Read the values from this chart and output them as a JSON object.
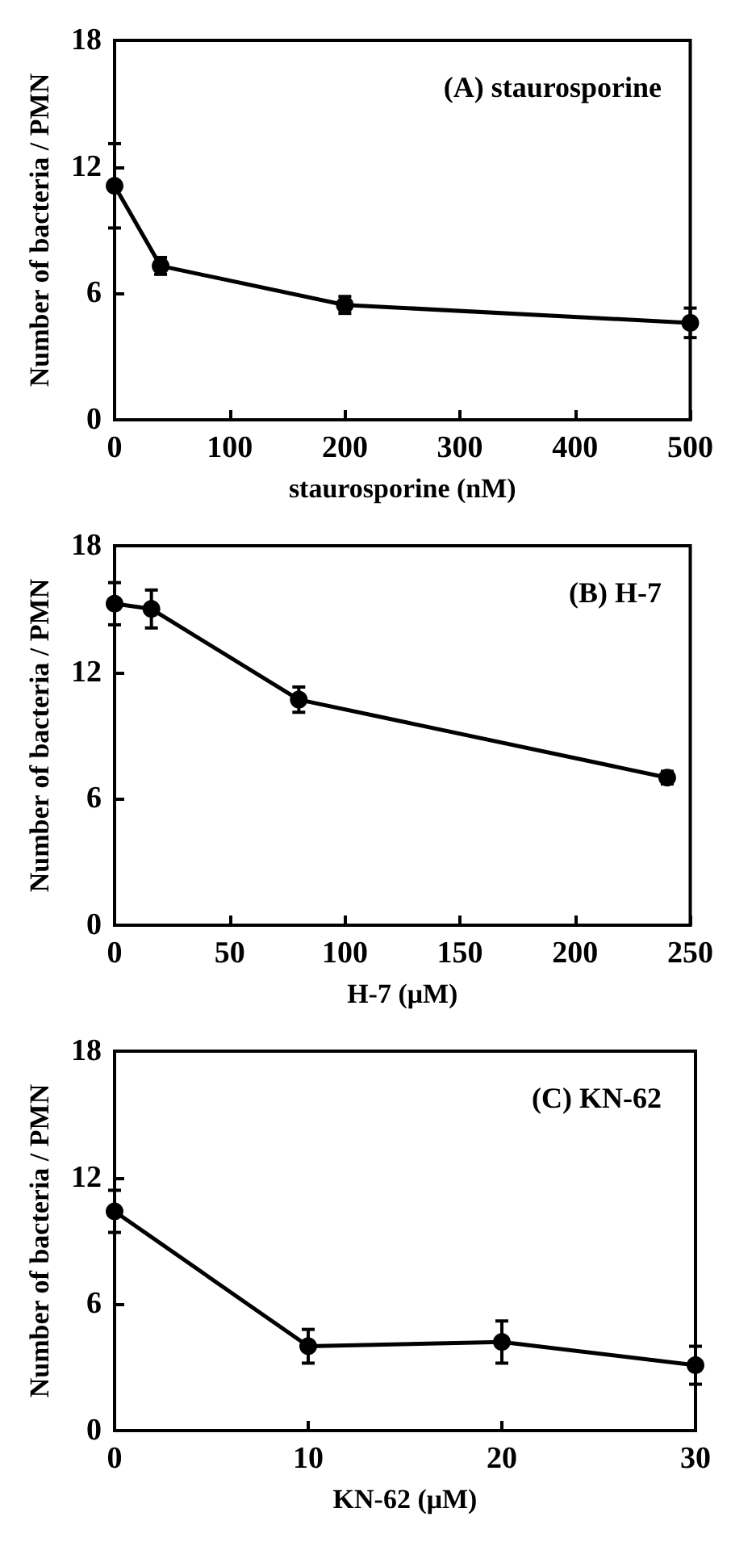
{
  "chart_data": [
    {
      "type": "line",
      "title": "(A) staurosporine",
      "xlabel": "staurosporine (nM)",
      "ylabel": "Number of bacteria / PMN",
      "x": [
        0,
        40,
        200,
        500
      ],
      "series": [
        {
          "color": "#000000",
          "values": [
            11.1,
            7.3,
            5.45,
            4.6
          ],
          "errors": [
            2.0,
            0.4,
            0.4,
            0.7
          ]
        }
      ],
      "xlim": [
        0,
        500
      ],
      "xticks": [
        0,
        100,
        200,
        300,
        400,
        500
      ],
      "ylim": [
        0,
        18
      ],
      "yticks": [
        0,
        6,
        12,
        18
      ],
      "marker": "circle",
      "line_style": "solid"
    },
    {
      "type": "line",
      "title": "(B) H-7",
      "xlabel": "H-7 (μM)",
      "ylabel": "Number of bacteria / PMN",
      "x": [
        0,
        16,
        80,
        240
      ],
      "series": [
        {
          "color": "#000000",
          "values": [
            15.25,
            15.0,
            10.7,
            7.0
          ],
          "errors": [
            1.0,
            0.9,
            0.6,
            0.3
          ]
        }
      ],
      "xlim": [
        0,
        250
      ],
      "xticks": [
        0,
        50,
        100,
        150,
        200,
        250
      ],
      "ylim": [
        0,
        18
      ],
      "yticks": [
        0,
        6,
        12,
        18
      ],
      "marker": "circle",
      "line_style": "solid"
    },
    {
      "type": "line",
      "title": "(C) KN-62",
      "xlabel": "KN-62 (μM)",
      "ylabel": "Number of bacteria / PMN",
      "x": [
        0,
        10,
        20,
        30
      ],
      "series": [
        {
          "color": "#000000",
          "values": [
            10.4,
            4.0,
            4.2,
            3.1
          ],
          "errors": [
            1.0,
            0.8,
            1.0,
            0.9
          ]
        }
      ],
      "xlim": [
        0,
        30
      ],
      "xticks": [
        0,
        10,
        20,
        30
      ],
      "ylim": [
        0,
        18
      ],
      "yticks": [
        0,
        6,
        12,
        18
      ],
      "marker": "circle",
      "line_style": "solid"
    }
  ]
}
